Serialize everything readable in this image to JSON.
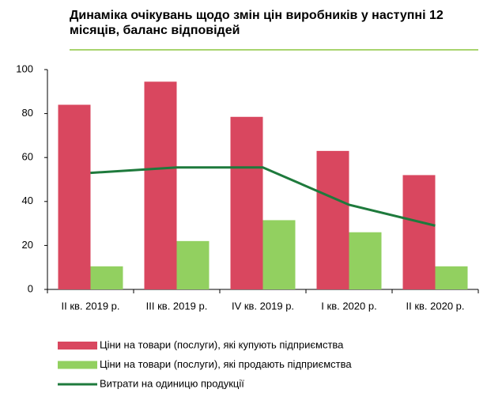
{
  "chart_data": {
    "type": "bar",
    "title": "Динаміка очікувань щодо змін цін виробників у наступні 12 місяців, баланс відповідей",
    "categories": [
      "II кв. 2019 р.",
      "III кв. 2019 р.",
      "IV кв. 2019 р.",
      "I кв. 2020 р.",
      "II кв. 2020 р."
    ],
    "series": [
      {
        "name": "Ціни на товари (послуги), які купують підприємства",
        "color": "#d9475f",
        "type": "bar",
        "values": [
          84,
          94.5,
          78.5,
          63,
          52
        ]
      },
      {
        "name": "Ціни на товари (послуги), які продають підприємства",
        "color": "#92d060",
        "type": "bar",
        "values": [
          10.5,
          22,
          31.5,
          26,
          10.5
        ]
      },
      {
        "name": "Витрати на одиницю продукції",
        "color": "#1e7a3c",
        "type": "line",
        "values": [
          53,
          55.5,
          55.5,
          38.5,
          29
        ]
      }
    ],
    "ylim": [
      0,
      100
    ],
    "yticks": [
      0,
      20,
      40,
      60,
      80,
      100
    ],
    "grid": false,
    "legend": "bottom"
  }
}
